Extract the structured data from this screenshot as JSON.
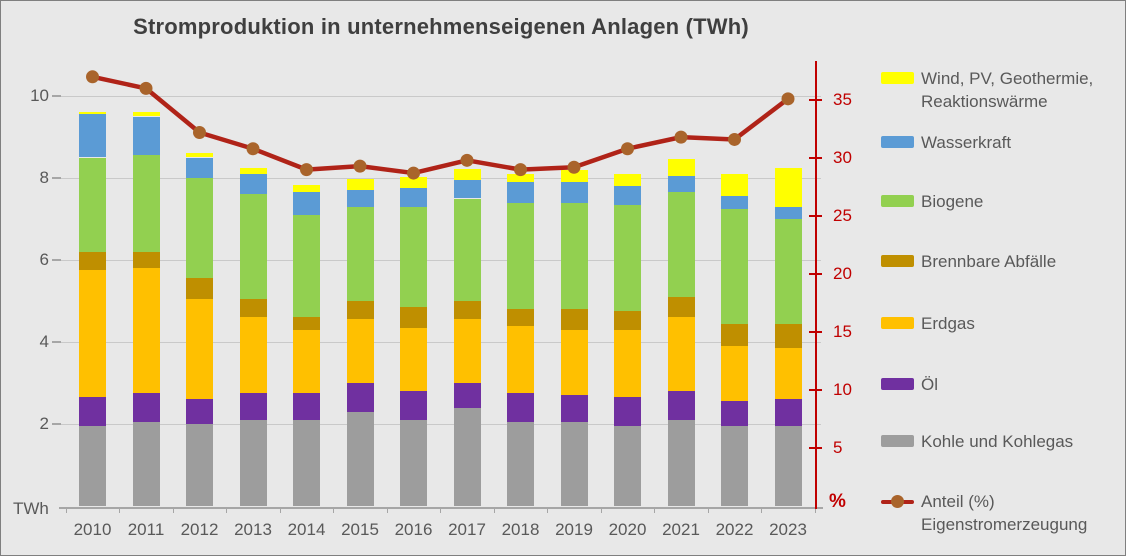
{
  "chart_data": {
    "type": "bar",
    "subtype": "stacked-bar-with-line",
    "title": "Stromproduktion in unternehmenseigenen Anlagen (TWh)",
    "left_axis": {
      "label": "TWh",
      "ticks": [
        2,
        4,
        6,
        8,
        10
      ],
      "range": [
        0,
        10.8
      ],
      "grid": true
    },
    "right_axis": {
      "label": "%",
      "ticks": [
        5,
        10,
        15,
        20,
        25,
        30,
        35
      ],
      "range": [
        0,
        38
      ],
      "color": "#C00000"
    },
    "categories": [
      "2010",
      "2011",
      "2012",
      "2013",
      "2014",
      "2015",
      "2016",
      "2017",
      "2018",
      "2019",
      "2020",
      "2021",
      "2022",
      "2023"
    ],
    "series": [
      {
        "name": "Kohle und Kohlegas",
        "color": "#9D9D9D",
        "values": [
          1.95,
          2.05,
          2.0,
          2.1,
          2.1,
          2.3,
          2.1,
          2.4,
          2.05,
          2.05,
          1.95,
          2.1,
          1.95,
          1.95
        ]
      },
      {
        "name": "Öl",
        "color": "#7030A0",
        "values": [
          0.7,
          0.7,
          0.6,
          0.65,
          0.65,
          0.7,
          0.7,
          0.6,
          0.7,
          0.65,
          0.7,
          0.7,
          0.6,
          0.65
        ]
      },
      {
        "name": "Erdgas",
        "color": "#FFC000",
        "values": [
          3.1,
          3.05,
          2.45,
          1.85,
          1.55,
          1.55,
          1.55,
          1.55,
          1.65,
          1.6,
          1.65,
          1.8,
          1.35,
          1.25
        ]
      },
      {
        "name": "Brennbare Abfälle",
        "color": "#BF8F00",
        "values": [
          0.45,
          0.4,
          0.5,
          0.45,
          0.3,
          0.45,
          0.5,
          0.45,
          0.4,
          0.5,
          0.45,
          0.5,
          0.55,
          0.6
        ]
      },
      {
        "name": "Biogene",
        "color": "#92D050",
        "values": [
          2.3,
          2.35,
          2.45,
          2.55,
          2.5,
          2.3,
          2.45,
          2.5,
          2.6,
          2.6,
          2.6,
          2.55,
          2.8,
          2.55
        ]
      },
      {
        "name": "Wasserkraft",
        "color": "#5B9BD5",
        "values": [
          1.05,
          0.95,
          0.5,
          0.5,
          0.55,
          0.4,
          0.45,
          0.45,
          0.5,
          0.5,
          0.45,
          0.4,
          0.3,
          0.3
        ]
      },
      {
        "name": "Wind, PV, Geothermie, Reaktionswärme",
        "color": "#FFFF00",
        "values": [
          0.05,
          0.1,
          0.1,
          0.15,
          0.18,
          0.28,
          0.28,
          0.28,
          0.2,
          0.3,
          0.3,
          0.42,
          0.55,
          0.95
        ]
      }
    ],
    "line_series": {
      "name": "Anteil (%) Eigenstromerzeugung",
      "color": "#B02318",
      "marker_color": "#A9642B",
      "axis": "right",
      "values": [
        37.0,
        36.0,
        32.2,
        30.8,
        29.0,
        29.3,
        28.7,
        29.8,
        29.0,
        29.2,
        30.8,
        31.8,
        31.6,
        35.1
      ]
    },
    "legend": [
      {
        "label": "Wind, PV, Geothermie,\nReaktionswärme",
        "color": "#FFFF00",
        "marker": "swatch"
      },
      {
        "label": "Wasserkraft",
        "color": "#5B9BD5",
        "marker": "swatch"
      },
      {
        "label": "Biogene",
        "color": "#92D050",
        "marker": "swatch"
      },
      {
        "label": "Brennbare Abfälle",
        "color": "#BF8F00",
        "marker": "swatch"
      },
      {
        "label": "Erdgas",
        "color": "#FFC000",
        "marker": "swatch"
      },
      {
        "label": "Öl",
        "color": "#7030A0",
        "marker": "swatch"
      },
      {
        "label": "Kohle und Kohlegas",
        "color": "#9D9D9D",
        "marker": "swatch"
      },
      {
        "label": "Anteil (%)\nEigenstromerzeugung",
        "color": "#B02318",
        "marker": "line"
      }
    ]
  }
}
